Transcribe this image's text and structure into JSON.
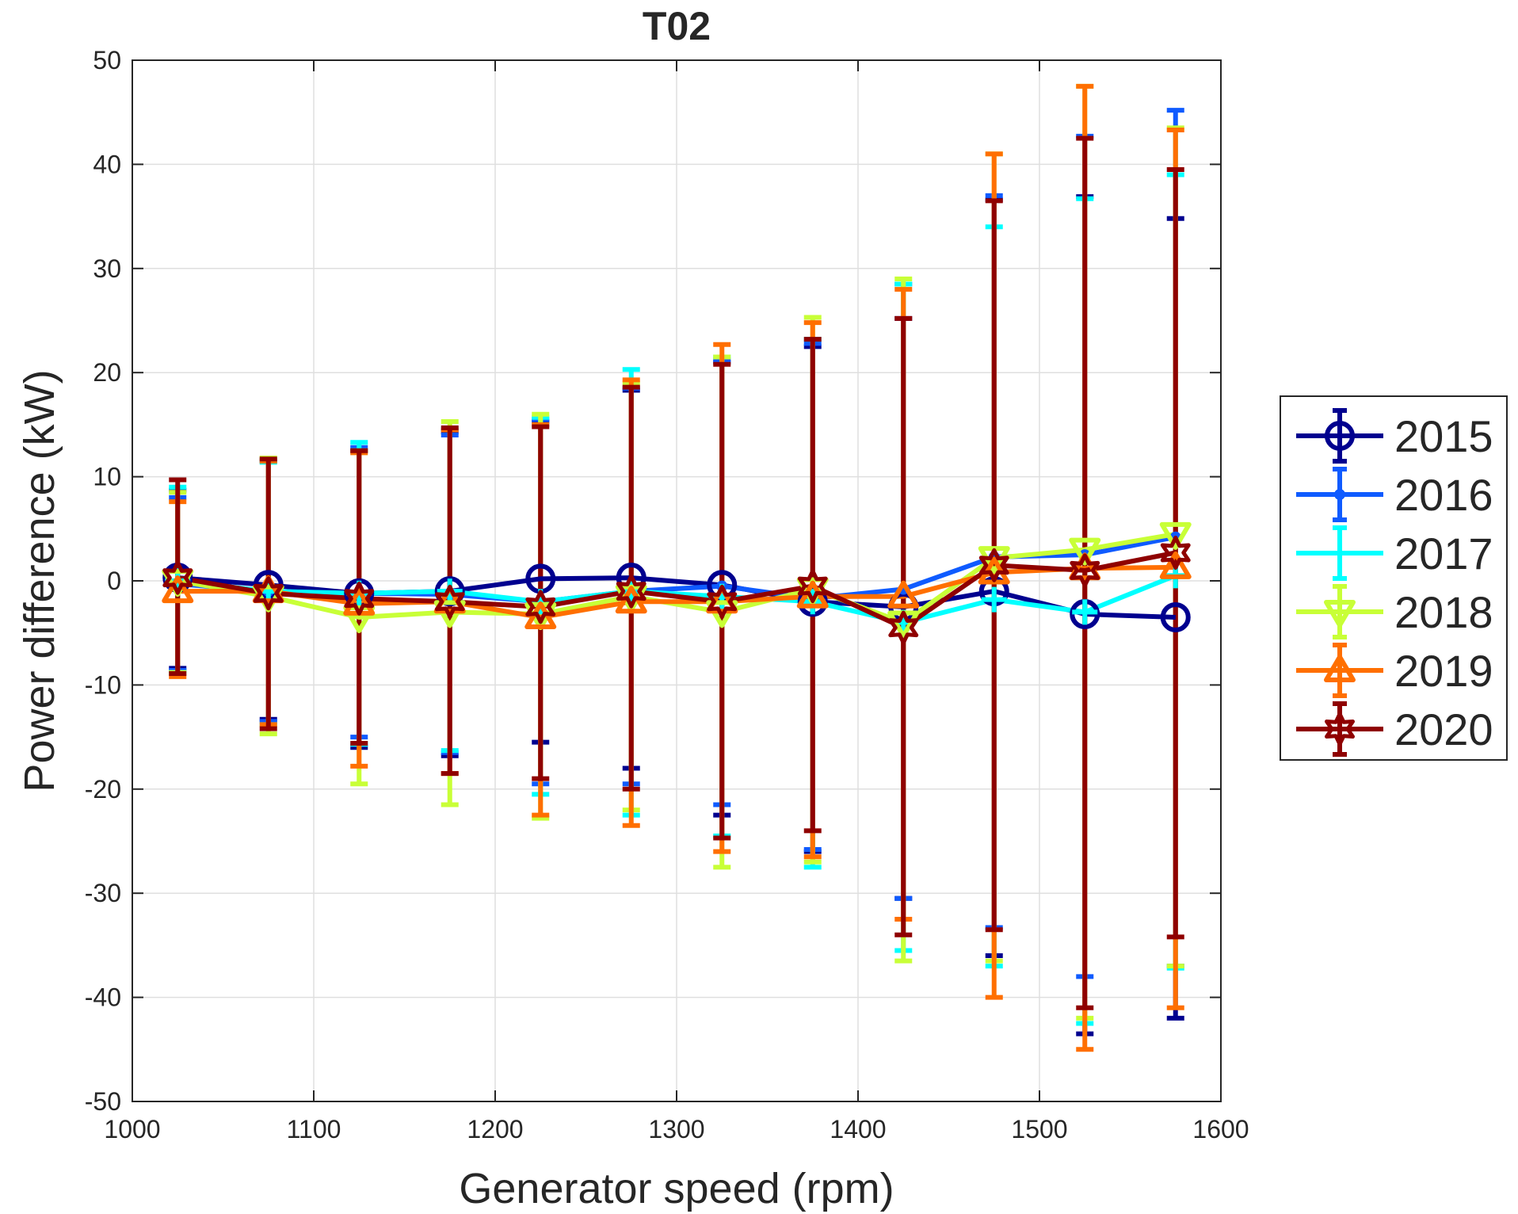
{
  "chart_data": {
    "type": "line",
    "title": "T02",
    "xlabel": "Generator speed (rpm)",
    "ylabel": "Power difference (kW)",
    "xlim": [
      1000,
      1600
    ],
    "ylim": [
      -50,
      50
    ],
    "xticks": [
      1000,
      1100,
      1200,
      1300,
      1400,
      1500,
      1600
    ],
    "yticks": [
      -50,
      -40,
      -30,
      -20,
      -10,
      0,
      10,
      20,
      30,
      40,
      50
    ],
    "grid": true,
    "legend_position": "outside-right",
    "series": [
      {
        "name": "2015",
        "color": "#00008f",
        "marker": "circle",
        "x": [
          1025,
          1075,
          1125,
          1175,
          1225,
          1275,
          1325,
          1375,
          1425,
          1475,
          1525,
          1575
        ],
        "y": [
          0.3,
          -0.4,
          -1.2,
          -1.0,
          0.2,
          0.3,
          -0.4,
          -2.0,
          -2.5,
          -1.0,
          -3.2,
          -3.5
        ],
        "lower": [
          -8.4,
          -13.3,
          -16.0,
          -16.8,
          -15.5,
          -18.0,
          -22.5,
          -26.0,
          -30.5,
          -36.0,
          -43.5,
          -42.0
        ],
        "upper": [
          8.7,
          11.5,
          12.5,
          14.3,
          15.3,
          18.3,
          21.0,
          22.5,
          25.2,
          36.6,
          36.9,
          34.8
        ]
      },
      {
        "name": "2016",
        "color": "#0f5bff",
        "marker": "point",
        "x": [
          1025,
          1075,
          1125,
          1175,
          1225,
          1275,
          1325,
          1375,
          1425,
          1475,
          1525,
          1575
        ],
        "y": [
          -0.3,
          -1.0,
          -1.2,
          -1.3,
          -2.0,
          -1.0,
          -0.5,
          -1.7,
          -0.8,
          2.3,
          2.5,
          4.2
        ],
        "lower": [
          -8.6,
          -13.5,
          -15.0,
          -16.5,
          -19.5,
          -19.5,
          -21.5,
          -25.8,
          -30.5,
          -33.3,
          -38.0,
          -37.0
        ],
        "upper": [
          8.0,
          11.6,
          12.8,
          14.0,
          15.5,
          18.5,
          21.2,
          22.8,
          28.5,
          37.0,
          42.7,
          45.2
        ]
      },
      {
        "name": "2017",
        "color": "#00ffff",
        "marker": "plus",
        "x": [
          1025,
          1075,
          1125,
          1175,
          1225,
          1275,
          1325,
          1375,
          1425,
          1475,
          1525,
          1575
        ],
        "y": [
          0.0,
          -1.0,
          -1.2,
          -1.0,
          -2.0,
          -1.0,
          -1.5,
          -2.0,
          -4.0,
          -1.8,
          -3.0,
          0.5
        ],
        "lower": [
          -8.8,
          -13.8,
          -15.7,
          -16.3,
          -20.5,
          -22.5,
          -24.5,
          -27.5,
          -35.5,
          -37.0,
          -42.5,
          -37.2
        ],
        "upper": [
          9.0,
          11.4,
          13.3,
          14.6,
          15.7,
          20.3,
          21.5,
          23.2,
          28.5,
          34.0,
          36.7,
          39.0
        ]
      },
      {
        "name": "2018",
        "color": "#c8ff37",
        "marker": "triangle-down",
        "x": [
          1025,
          1075,
          1125,
          1175,
          1225,
          1275,
          1325,
          1375,
          1425,
          1475,
          1525,
          1575
        ],
        "y": [
          0.0,
          -1.5,
          -3.5,
          -3.0,
          -3.2,
          -1.5,
          -3.0,
          -0.8,
          -4.0,
          2.2,
          3.0,
          4.5
        ],
        "lower": [
          -8.8,
          -14.7,
          -19.5,
          -21.5,
          -22.8,
          -22.0,
          -27.5,
          -27.0,
          -36.5,
          -36.5,
          -42.0,
          -37.0
        ],
        "upper": [
          8.5,
          11.8,
          12.5,
          15.3,
          16.0,
          19.0,
          21.5,
          25.3,
          29.0,
          41.0,
          47.5,
          43.5
        ]
      },
      {
        "name": "2019",
        "color": "#ff6f00",
        "marker": "triangle-up",
        "x": [
          1025,
          1075,
          1125,
          1175,
          1225,
          1275,
          1325,
          1375,
          1425,
          1475,
          1525,
          1575
        ],
        "y": [
          -1.0,
          -1.0,
          -2.2,
          -2.0,
          -3.5,
          -2.0,
          -2.0,
          -1.5,
          -1.5,
          0.8,
          1.2,
          1.3
        ],
        "lower": [
          -9.2,
          -13.8,
          -17.8,
          -18.5,
          -22.5,
          -23.5,
          -26.0,
          -26.5,
          -32.5,
          -40.0,
          -45.0,
          -41.0
        ],
        "upper": [
          7.6,
          11.5,
          12.3,
          14.5,
          15.0,
          19.3,
          22.7,
          24.8,
          28.0,
          41.0,
          47.5,
          43.3
        ]
      },
      {
        "name": "2020",
        "color": "#8f0000",
        "marker": "hexagram",
        "x": [
          1025,
          1075,
          1125,
          1175,
          1225,
          1275,
          1325,
          1375,
          1425,
          1475,
          1525,
          1575
        ],
        "y": [
          0.3,
          -1.2,
          -1.7,
          -2.0,
          -2.5,
          -1.0,
          -2.0,
          -0.5,
          -4.5,
          1.5,
          1.0,
          2.7
        ],
        "lower": [
          -8.9,
          -14.2,
          -15.6,
          -18.5,
          -19.0,
          -20.0,
          -24.7,
          -24.0,
          -34.0,
          -33.5,
          -41.0,
          -34.2
        ],
        "upper": [
          9.7,
          11.7,
          12.5,
          14.7,
          14.8,
          18.6,
          20.8,
          23.2,
          25.2,
          36.5,
          42.5,
          39.5
        ]
      }
    ]
  }
}
